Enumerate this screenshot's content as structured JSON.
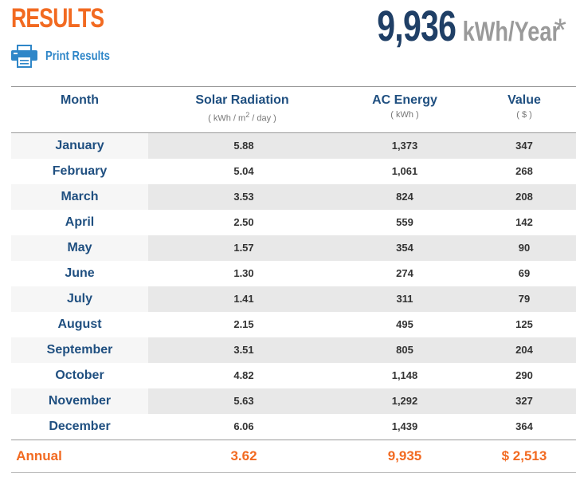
{
  "header": {
    "title": "RESULTS",
    "print_label": "Print Results",
    "print_icon": "printer-icon",
    "annual_value": "9,936",
    "annual_unit": "kWh/Year",
    "annual_asterisk": "*"
  },
  "columns": {
    "month": {
      "title": "Month",
      "unit": ""
    },
    "solar": {
      "title": "Solar Radiation",
      "unit_prefix": "( kWh / m",
      "unit_sup": "2",
      "unit_suffix": " / day )"
    },
    "ac": {
      "title": "AC Energy",
      "unit": "( kWh )"
    },
    "value": {
      "title": "Value",
      "unit": "( $ )"
    }
  },
  "rows": [
    {
      "month": "January",
      "solar": "5.88",
      "ac": "1,373",
      "value": "347"
    },
    {
      "month": "February",
      "solar": "5.04",
      "ac": "1,061",
      "value": "268"
    },
    {
      "month": "March",
      "solar": "3.53",
      "ac": "824",
      "value": "208"
    },
    {
      "month": "April",
      "solar": "2.50",
      "ac": "559",
      "value": "142"
    },
    {
      "month": "May",
      "solar": "1.57",
      "ac": "354",
      "value": "90"
    },
    {
      "month": "June",
      "solar": "1.30",
      "ac": "274",
      "value": "69"
    },
    {
      "month": "July",
      "solar": "1.41",
      "ac": "311",
      "value": "79"
    },
    {
      "month": "August",
      "solar": "2.15",
      "ac": "495",
      "value": "125"
    },
    {
      "month": "September",
      "solar": "3.51",
      "ac": "805",
      "value": "204"
    },
    {
      "month": "October",
      "solar": "4.82",
      "ac": "1,148",
      "value": "290"
    },
    {
      "month": "November",
      "solar": "5.63",
      "ac": "1,292",
      "value": "327"
    },
    {
      "month": "December",
      "solar": "6.06",
      "ac": "1,439",
      "value": "364"
    }
  ],
  "annual": {
    "label": "Annual",
    "solar": "3.62",
    "ac": "9,935",
    "value": "$ 2,513"
  },
  "colors": {
    "accent_orange": "#f26a21",
    "navy": "#1f3f66",
    "link_blue": "#2e86c8",
    "header_blue": "#1f4f80",
    "unit_gray": "#9a9a9a"
  }
}
